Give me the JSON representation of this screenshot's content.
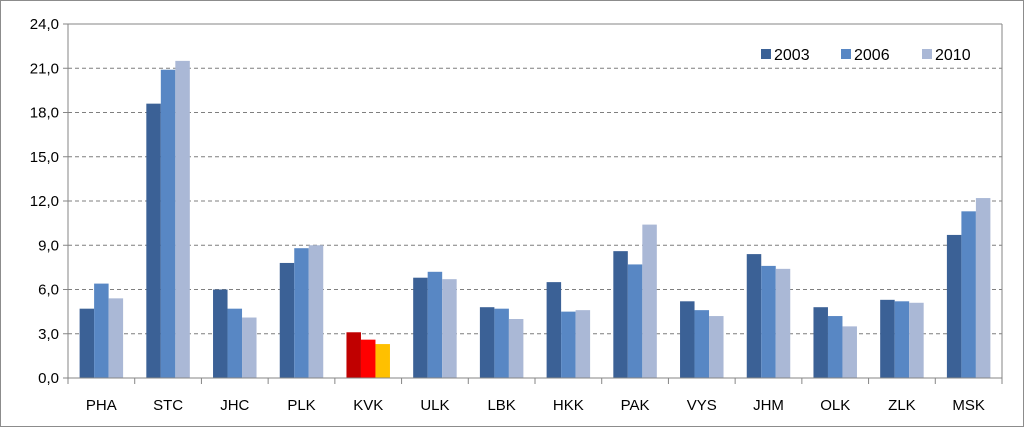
{
  "chart_data": {
    "type": "bar",
    "title": "",
    "xlabel": "",
    "ylabel": "",
    "ylim": [
      0,
      24
    ],
    "yticks": [
      "0,0",
      "3,0",
      "6,0",
      "9,0",
      "12,0",
      "15,0",
      "18,0",
      "21,0",
      "24,0"
    ],
    "grid": true,
    "legend_position": "top-right",
    "categories": [
      "PHA",
      "STC",
      "JHC",
      "PLK",
      "KVK",
      "ULK",
      "LBK",
      "HKK",
      "PAK",
      "VYS",
      "JHM",
      "OLK",
      "ZLK",
      "MSK"
    ],
    "series": [
      {
        "name": "2003",
        "color": "#3b6196",
        "values": [
          4.7,
          18.6,
          6.0,
          7.8,
          3.1,
          6.8,
          4.8,
          6.5,
          8.6,
          5.2,
          8.4,
          4.8,
          5.3,
          9.7
        ]
      },
      {
        "name": "2006",
        "color": "#5887c4",
        "values": [
          6.4,
          20.9,
          4.7,
          8.8,
          2.6,
          7.2,
          4.7,
          4.5,
          7.7,
          4.6,
          7.6,
          4.2,
          5.2,
          11.3
        ]
      },
      {
        "name": "2010",
        "color": "#aab8d6",
        "values": [
          5.4,
          21.5,
          4.1,
          9.0,
          2.3,
          6.7,
          4.0,
          4.6,
          10.4,
          4.2,
          7.4,
          3.5,
          5.1,
          12.2
        ]
      }
    ],
    "highlight": {
      "category": "KVK",
      "colors": [
        "#c00000",
        "#ff0000",
        "#ffc000"
      ]
    }
  }
}
